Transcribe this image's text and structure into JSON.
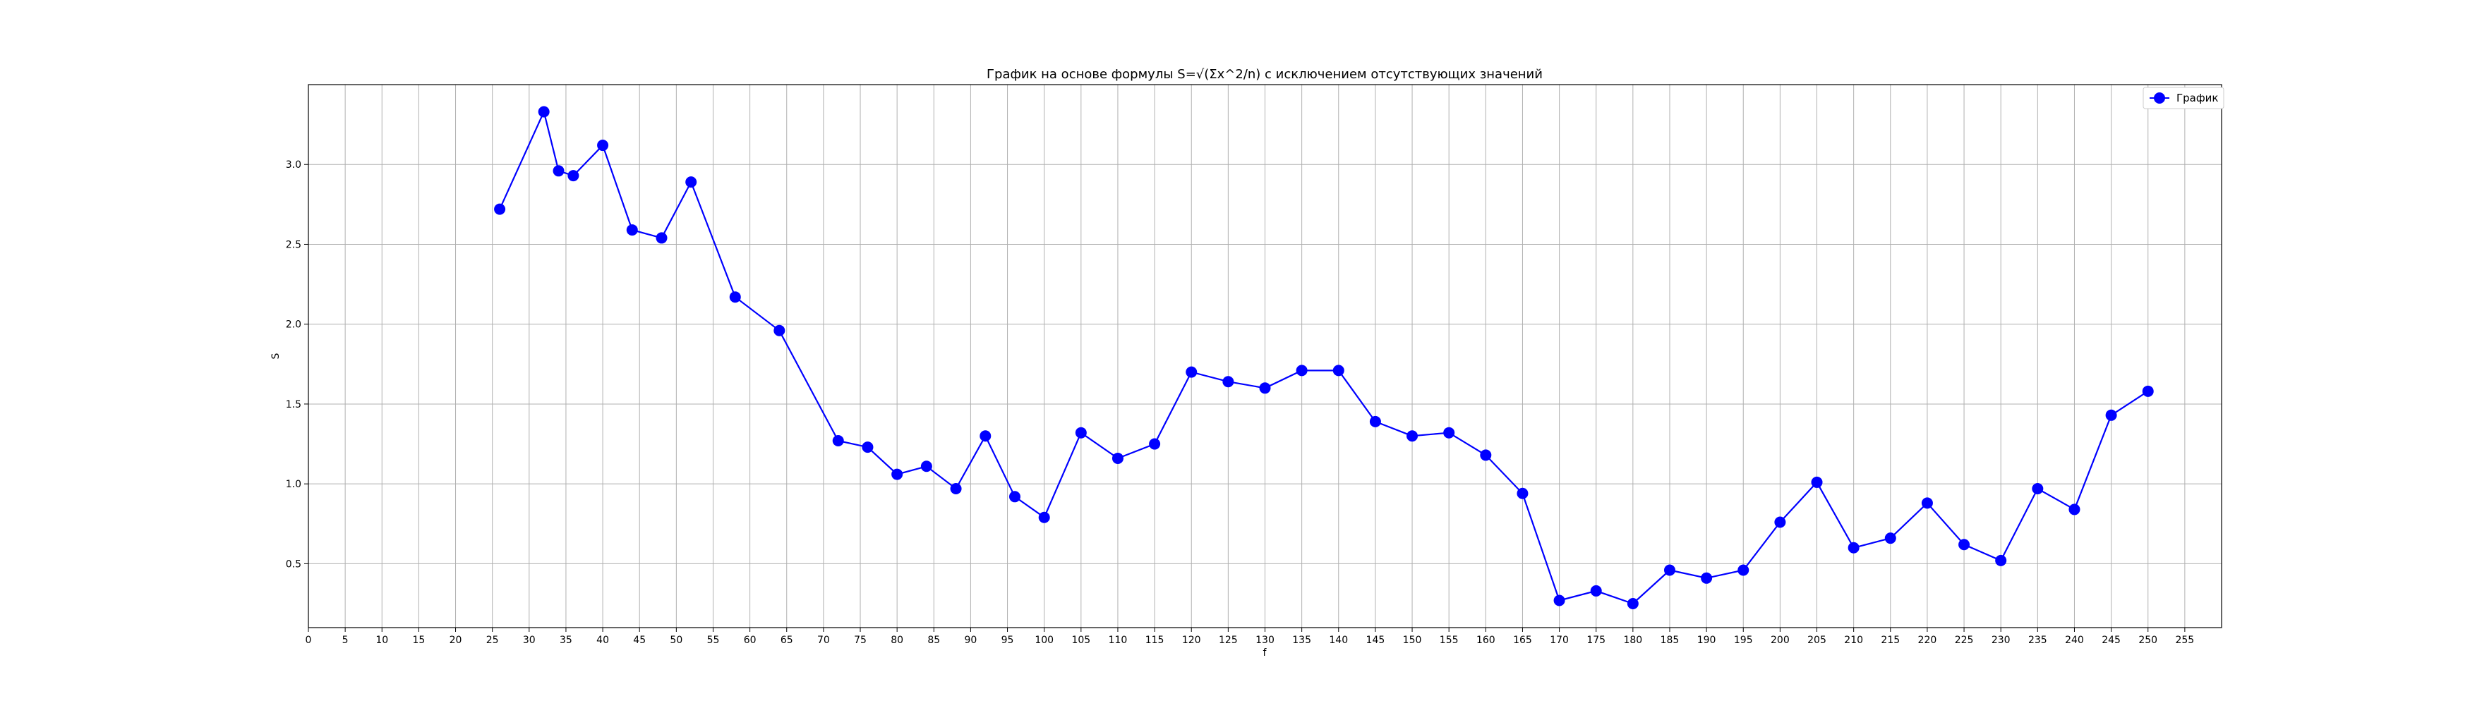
{
  "chart_data": {
    "type": "line",
    "title": "График на основе формулы S=√(Σx^2/n) с исключением отсутствующих значений",
    "xlabel": "f",
    "ylabel": "S",
    "xlim": [
      0,
      260
    ],
    "ylim": [
      0.1,
      3.5
    ],
    "x_ticks": [
      0,
      5,
      10,
      15,
      20,
      25,
      30,
      35,
      40,
      45,
      50,
      55,
      60,
      65,
      70,
      75,
      80,
      85,
      90,
      95,
      100,
      105,
      110,
      115,
      120,
      125,
      130,
      135,
      140,
      145,
      150,
      155,
      160,
      165,
      170,
      175,
      180,
      185,
      190,
      195,
      200,
      205,
      210,
      215,
      220,
      225,
      230,
      235,
      240,
      245,
      250,
      255
    ],
    "y_ticks": [
      0.5,
      1.0,
      1.5,
      2.0,
      2.5,
      3.0
    ],
    "y_tick_labels": [
      "0.5",
      "1.0",
      "1.5",
      "2.0",
      "2.5",
      "3.0"
    ],
    "grid": true,
    "legend_position": "top-right",
    "series": [
      {
        "name": "График",
        "color": "#0000ff",
        "marker": "circle",
        "x": [
          26,
          32,
          34,
          36,
          40,
          44,
          48,
          52,
          58,
          64,
          72,
          76,
          80,
          84,
          88,
          92,
          96,
          100,
          105,
          110,
          115,
          120,
          125,
          130,
          135,
          140,
          145,
          150,
          155,
          160,
          165,
          170,
          175,
          180,
          185,
          190,
          195,
          200,
          205,
          210,
          215,
          220,
          225,
          230,
          235,
          240,
          245,
          250
        ],
        "y": [
          2.72,
          3.33,
          2.96,
          2.93,
          3.12,
          2.59,
          2.54,
          2.89,
          2.17,
          1.96,
          1.27,
          1.23,
          1.06,
          1.11,
          0.97,
          1.3,
          0.92,
          0.79,
          1.32,
          1.16,
          1.25,
          1.7,
          1.64,
          1.6,
          1.71,
          1.71,
          1.39,
          1.3,
          1.32,
          1.18,
          0.94,
          0.27,
          0.33,
          0.25,
          0.46,
          0.41,
          0.46,
          0.76,
          1.01,
          0.6,
          0.66,
          0.88,
          0.62,
          0.52,
          0.97,
          0.84,
          1.43,
          1.58
        ]
      }
    ]
  }
}
